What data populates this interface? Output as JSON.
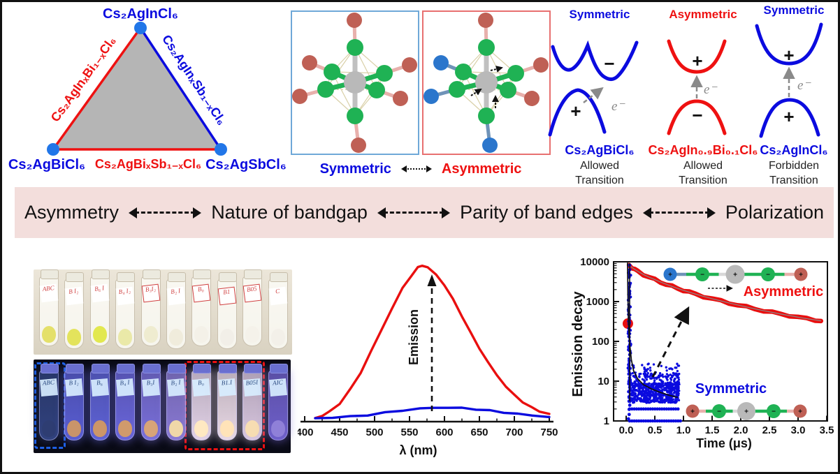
{
  "phase_triangle": {
    "vertex_top": "Cs₂AgInCl₆",
    "vertex_bottom_left": "Cs₂AgBiCl₆",
    "vertex_bottom_right": "Cs₂AgSbCl₆",
    "edge_left": "Cs₂AgInₓBi₁₋ₓCl₆",
    "edge_right": "Cs₂AgInₓSb₁₋ₓCl₆",
    "edge_bottom": "Cs₂AgBiₓSb₁₋ₓCl₆",
    "fill_color": "#b5b5b5",
    "vertex_dot_color": "#2176e8"
  },
  "octahedra": {
    "left_caption": "Symmetric",
    "right_caption": "Asymmetric"
  },
  "band_diagrams": [
    {
      "title": "Symmetric",
      "cb_sign": "−",
      "vb_sign": "+",
      "electron": "e⁻",
      "compound": "Cs₂AgBiCl₆",
      "transition_line1": "Allowed",
      "transition_line2": "Transition",
      "color": "#0b0bdf"
    },
    {
      "title": "Asymmetric",
      "cb_sign": "+",
      "vb_sign": "−",
      "electron": "e⁻",
      "compound": "Cs₂AgIn₀.₉Bi₀.₁Cl₆",
      "transition_line1": "Allowed",
      "transition_line2": "Transition",
      "color": "#ee1111"
    },
    {
      "title": "Symmetric",
      "cb_sign": "+",
      "vb_sign": "+",
      "electron": "e⁻",
      "compound": "Cs₂AgInCl₆",
      "transition_line1": "Forbidden",
      "transition_line2": "Transition",
      "color": "#0b0bdf"
    }
  ],
  "banner": {
    "bg": "#f3dedc",
    "items": [
      "Asymmetry",
      "Nature of bandgap",
      "Parity of band edges",
      "Polarization"
    ],
    "first_color": "#ee1111"
  },
  "photos": {
    "daylight_vials": [
      {
        "label": "ABC",
        "powder": "#e4e06a",
        "boxed": false
      },
      {
        "label": "B I₂",
        "powder": "#e3e35c",
        "boxed": false
      },
      {
        "label": "B₆ I",
        "powder": "#e2e84f",
        "boxed": false
      },
      {
        "label": "B₄ I₂",
        "powder": "#eae9a8",
        "boxed": false
      },
      {
        "label": "B₃I₂",
        "powder": "#efecd0",
        "boxed": true
      },
      {
        "label": "B₂ I",
        "powder": "#f0ecdc",
        "boxed": false
      },
      {
        "label": "B₀",
        "powder": "#f4f1e8",
        "boxed": true
      },
      {
        "label": "B1",
        "powder": "#f2efe8",
        "boxed": true
      },
      {
        "label": "B05",
        "powder": "#f5f2ea",
        "boxed": true
      },
      {
        "label": "C",
        "powder": "#f3f0e9",
        "boxed": false
      }
    ],
    "uv_vials": [
      {
        "label": "ABC",
        "body": "#31427e",
        "powder": "#2e3d72"
      },
      {
        "label": "B I₂",
        "body": "#5a5ed2",
        "powder": "#c9946a"
      },
      {
        "label": "B₆",
        "body": "#5f63d6",
        "powder": "#cc9668"
      },
      {
        "label": "B₄ I",
        "body": "#6a66da",
        "powder": "#d09a6c"
      },
      {
        "label": "B₃I",
        "body": "#7a70da",
        "powder": "#d8a478"
      },
      {
        "label": "B₂ I",
        "body": "#8a7ad4",
        "powder": "#f0d8a8"
      },
      {
        "label": "B₀",
        "body": "#e2d2e6",
        "powder": "#ffe9c2"
      },
      {
        "label": "B1.I",
        "body": "#e8d8e4",
        "powder": "#ffe3b8"
      },
      {
        "label": "B05I",
        "body": "#d8c6de",
        "powder": "#f7ddb2"
      },
      {
        "label": "AIC",
        "body": "#6f60ca",
        "powder": "#8f80d8"
      }
    ]
  },
  "chart_data": [
    {
      "type": "line",
      "xlabel": "λ (nm)",
      "annotation": "Emission",
      "xticks": [
        "400",
        "450",
        "500",
        "550",
        "600",
        "650",
        "700",
        "750"
      ],
      "xlim": [
        400,
        750
      ],
      "grid": false,
      "series": [
        {
          "name": "Asymmetric (strong PL)",
          "color": "#e90f0f",
          "points": [
            [
              415,
              0.005
            ],
            [
              425,
              0.02
            ],
            [
              435,
              0.045
            ],
            [
              450,
              0.1
            ],
            [
              465,
              0.19
            ],
            [
              480,
              0.3
            ],
            [
              495,
              0.44
            ],
            [
              510,
              0.58
            ],
            [
              525,
              0.72
            ],
            [
              540,
              0.85
            ],
            [
              552,
              0.93
            ],
            [
              562,
              0.985
            ],
            [
              568,
              1.0
            ],
            [
              576,
              0.985
            ],
            [
              588,
              0.94
            ],
            [
              600,
              0.87
            ],
            [
              612,
              0.78
            ],
            [
              625,
              0.67
            ],
            [
              638,
              0.555
            ],
            [
              650,
              0.46
            ],
            [
              662,
              0.37
            ],
            [
              675,
              0.285
            ],
            [
              688,
              0.21
            ],
            [
              700,
              0.155
            ],
            [
              712,
              0.11
            ],
            [
              724,
              0.075
            ],
            [
              736,
              0.05
            ],
            [
              750,
              0.03
            ]
          ]
        },
        {
          "name": "Symmetric (weak PL)",
          "color": "#0b0bdf",
          "points": [
            [
              415,
              0.004
            ],
            [
              440,
              0.008
            ],
            [
              465,
              0.015
            ],
            [
              490,
              0.025
            ],
            [
              515,
              0.04
            ],
            [
              540,
              0.055
            ],
            [
              565,
              0.067
            ],
            [
              585,
              0.072
            ],
            [
              605,
              0.073
            ],
            [
              625,
              0.07
            ],
            [
              645,
              0.063
            ],
            [
              665,
              0.053
            ],
            [
              685,
              0.042
            ],
            [
              705,
              0.032
            ],
            [
              725,
              0.022
            ],
            [
              750,
              0.013
            ]
          ]
        }
      ]
    },
    {
      "type": "scatter",
      "xlabel": "Time (μs)",
      "ylabel": "Emission decay",
      "yscale": "log",
      "ylim": [
        1,
        10000
      ],
      "xlim": [
        0,
        3.5
      ],
      "xticks": [
        "0.0",
        "0.5",
        "1.0",
        "1.5",
        "2.0",
        "2.5",
        "3.0",
        "3.5"
      ],
      "yticks": [
        "1",
        "10",
        "100",
        "1000",
        "10000"
      ],
      "legend": [
        "Asymmetric",
        "Symmetric"
      ],
      "series": [
        {
          "name": "Asymmetric decay",
          "color": "#e90f0f",
          "points": [
            [
              0.05,
              8300
            ],
            [
              0.1,
              7200
            ],
            [
              0.15,
              6400
            ],
            [
              0.2,
              5800
            ],
            [
              0.3,
              4800
            ],
            [
              0.4,
              4100
            ],
            [
              0.5,
              3550
            ],
            [
              0.6,
              3100
            ],
            [
              0.7,
              2720
            ],
            [
              0.8,
              2400
            ],
            [
              0.9,
              2140
            ],
            [
              1.0,
              1920
            ],
            [
              1.1,
              1730
            ],
            [
              1.2,
              1560
            ],
            [
              1.35,
              1350
            ],
            [
              1.5,
              1180
            ],
            [
              1.65,
              1040
            ],
            [
              1.8,
              920
            ],
            [
              1.95,
              820
            ],
            [
              2.1,
              730
            ],
            [
              2.25,
              655
            ],
            [
              2.4,
              590
            ],
            [
              2.55,
              535
            ],
            [
              2.7,
              485
            ],
            [
              2.85,
              445
            ],
            [
              3.0,
              405
            ],
            [
              3.15,
              372
            ],
            [
              3.3,
              345
            ],
            [
              3.4,
              328
            ]
          ]
        },
        {
          "name": "Symmetric decay fit",
          "color": "#111111",
          "points": [
            [
              0.025,
              9500
            ],
            [
              0.03,
              1500
            ],
            [
              0.04,
              300
            ],
            [
              0.06,
              90
            ],
            [
              0.09,
              35
            ],
            [
              0.13,
              18
            ],
            [
              0.2,
              11.5
            ],
            [
              0.3,
              8.2
            ],
            [
              0.45,
              6.3
            ],
            [
              0.6,
              5.2
            ],
            [
              0.75,
              4.4
            ],
            [
              0.9,
              3.9
            ]
          ]
        }
      ],
      "outlier_point": [
        0.03,
        280
      ],
      "noise_band": {
        "t_range": [
          0.0,
          0.9
        ],
        "count_range": [
          3,
          18
        ]
      },
      "dot_rows": [
        2,
        1
      ],
      "chains": {
        "asymmetric": {
          "atoms": [
            {
              "sign": "+",
              "color": "#2b76cc"
            },
            {
              "sign": "−",
              "color": "#1fb254"
            },
            {
              "sign": "+",
              "color": "#b9b9b9"
            },
            {
              "sign": "−",
              "color": "#1fb254"
            },
            {
              "sign": "+",
              "color": "#bf6055"
            }
          ]
        },
        "symmetric": {
          "atoms": [
            {
              "sign": "+",
              "color": "#bf6055"
            },
            {
              "sign": "−",
              "color": "#1fb254"
            },
            {
              "sign": "+",
              "color": "#b9b9b9"
            },
            {
              "sign": "−",
              "color": "#1fb254"
            },
            {
              "sign": "+",
              "color": "#bf6055"
            }
          ]
        }
      }
    }
  ]
}
